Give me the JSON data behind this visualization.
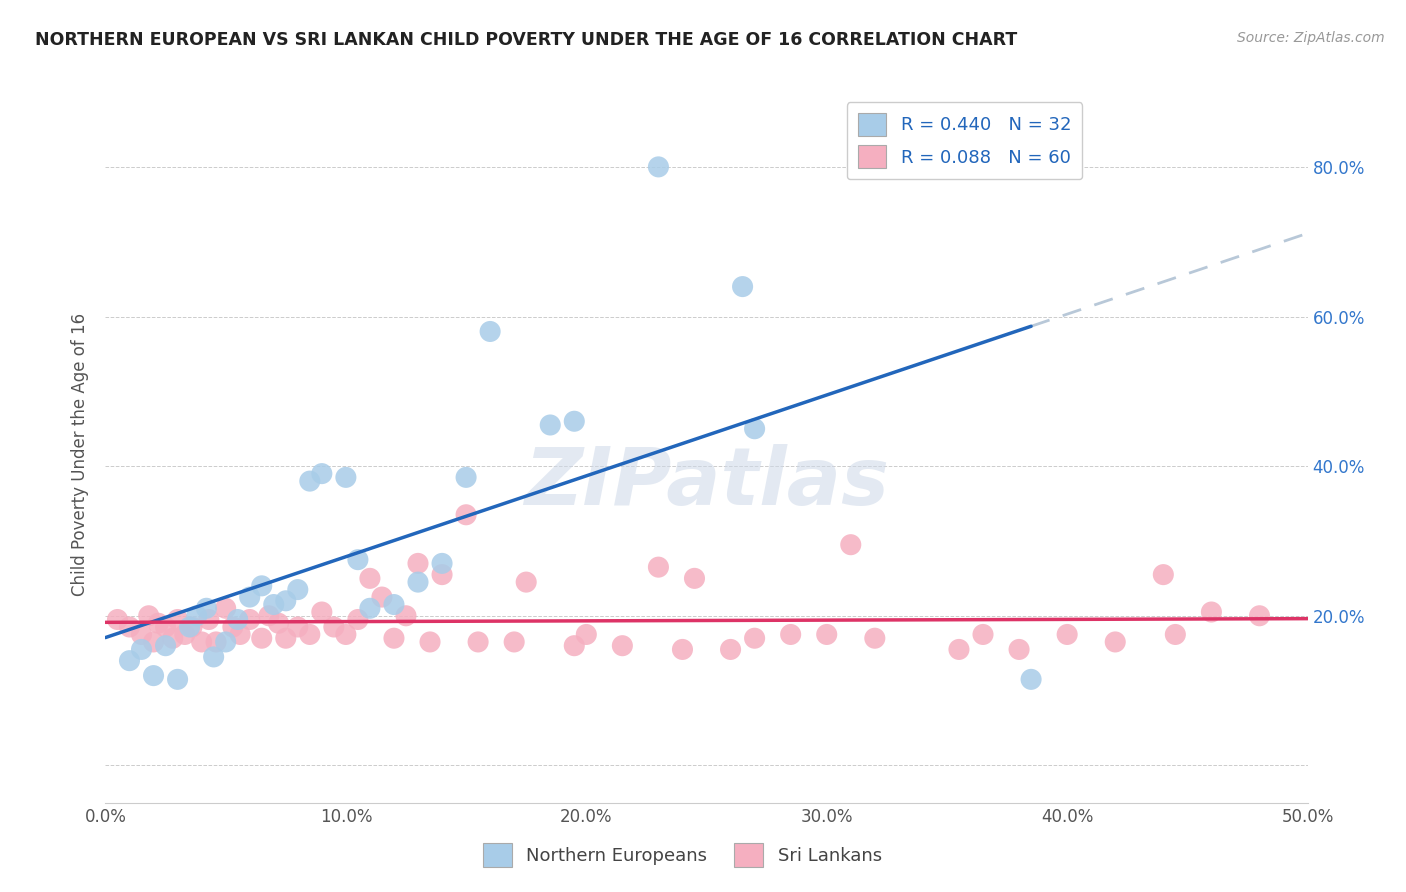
{
  "title": "NORTHERN EUROPEAN VS SRI LANKAN CHILD POVERTY UNDER THE AGE OF 16 CORRELATION CHART",
  "source": "Source: ZipAtlas.com",
  "ylabel": "Child Poverty Under the Age of 16",
  "xlim": [
    0.0,
    0.5
  ],
  "ylim": [
    -0.05,
    0.88
  ],
  "ytick_vals": [
    0.0,
    0.2,
    0.4,
    0.6,
    0.8
  ],
  "ytick_labels_left": [
    "",
    "",
    "",
    "",
    ""
  ],
  "ytick_labels_right": [
    "",
    "20.0%",
    "40.0%",
    "60.0%",
    "80.0%"
  ],
  "xtick_vals": [
    0.0,
    0.1,
    0.2,
    0.3,
    0.4,
    0.5
  ],
  "xtick_labels": [
    "0.0%",
    "10.0%",
    "20.0%",
    "30.0%",
    "40.0%",
    "50.0%"
  ],
  "legend_labels_top_1": "R = 0.440   N = 32",
  "legend_labels_top_2": "R = 0.088   N = 60",
  "legend_labels_bottom": [
    "Northern Europeans",
    "Sri Lankans"
  ],
  "R_blue": 0.44,
  "N_blue": 32,
  "R_pink": 0.088,
  "N_pink": 60,
  "blue_color": "#a8cce8",
  "pink_color": "#f5afc0",
  "blue_line_color": "#2266bb",
  "pink_line_color": "#dd3366",
  "dashed_line_color": "#b8c8d8",
  "watermark": "ZIPatlas",
  "blue_x": [
    0.01,
    0.015,
    0.02,
    0.025,
    0.03,
    0.035,
    0.038,
    0.042,
    0.045,
    0.05,
    0.055,
    0.06,
    0.065,
    0.07,
    0.075,
    0.08,
    0.085,
    0.09,
    0.1,
    0.105,
    0.11,
    0.12,
    0.13,
    0.14,
    0.15,
    0.16,
    0.185,
    0.195,
    0.23,
    0.265,
    0.27,
    0.385
  ],
  "blue_y": [
    0.14,
    0.155,
    0.12,
    0.16,
    0.115,
    0.185,
    0.2,
    0.21,
    0.145,
    0.165,
    0.195,
    0.225,
    0.24,
    0.215,
    0.22,
    0.235,
    0.38,
    0.39,
    0.385,
    0.275,
    0.21,
    0.215,
    0.245,
    0.27,
    0.385,
    0.58,
    0.455,
    0.46,
    0.8,
    0.64,
    0.45,
    0.115
  ],
  "pink_x": [
    0.005,
    0.01,
    0.015,
    0.018,
    0.02,
    0.022,
    0.025,
    0.028,
    0.03,
    0.033,
    0.036,
    0.04,
    0.043,
    0.046,
    0.05,
    0.053,
    0.056,
    0.06,
    0.065,
    0.068,
    0.072,
    0.075,
    0.08,
    0.085,
    0.09,
    0.095,
    0.1,
    0.105,
    0.11,
    0.115,
    0.12,
    0.125,
    0.13,
    0.135,
    0.14,
    0.15,
    0.155,
    0.17,
    0.175,
    0.195,
    0.2,
    0.215,
    0.23,
    0.24,
    0.245,
    0.26,
    0.27,
    0.285,
    0.3,
    0.31,
    0.32,
    0.355,
    0.365,
    0.38,
    0.4,
    0.42,
    0.44,
    0.445,
    0.46,
    0.48
  ],
  "pink_y": [
    0.195,
    0.185,
    0.175,
    0.2,
    0.165,
    0.19,
    0.185,
    0.17,
    0.195,
    0.175,
    0.185,
    0.165,
    0.195,
    0.165,
    0.21,
    0.185,
    0.175,
    0.195,
    0.17,
    0.2,
    0.19,
    0.17,
    0.185,
    0.175,
    0.205,
    0.185,
    0.175,
    0.195,
    0.25,
    0.225,
    0.17,
    0.2,
    0.27,
    0.165,
    0.255,
    0.335,
    0.165,
    0.165,
    0.245,
    0.16,
    0.175,
    0.16,
    0.265,
    0.155,
    0.25,
    0.155,
    0.17,
    0.175,
    0.175,
    0.295,
    0.17,
    0.155,
    0.175,
    0.155,
    0.175,
    0.165,
    0.255,
    0.175,
    0.205,
    0.2
  ]
}
